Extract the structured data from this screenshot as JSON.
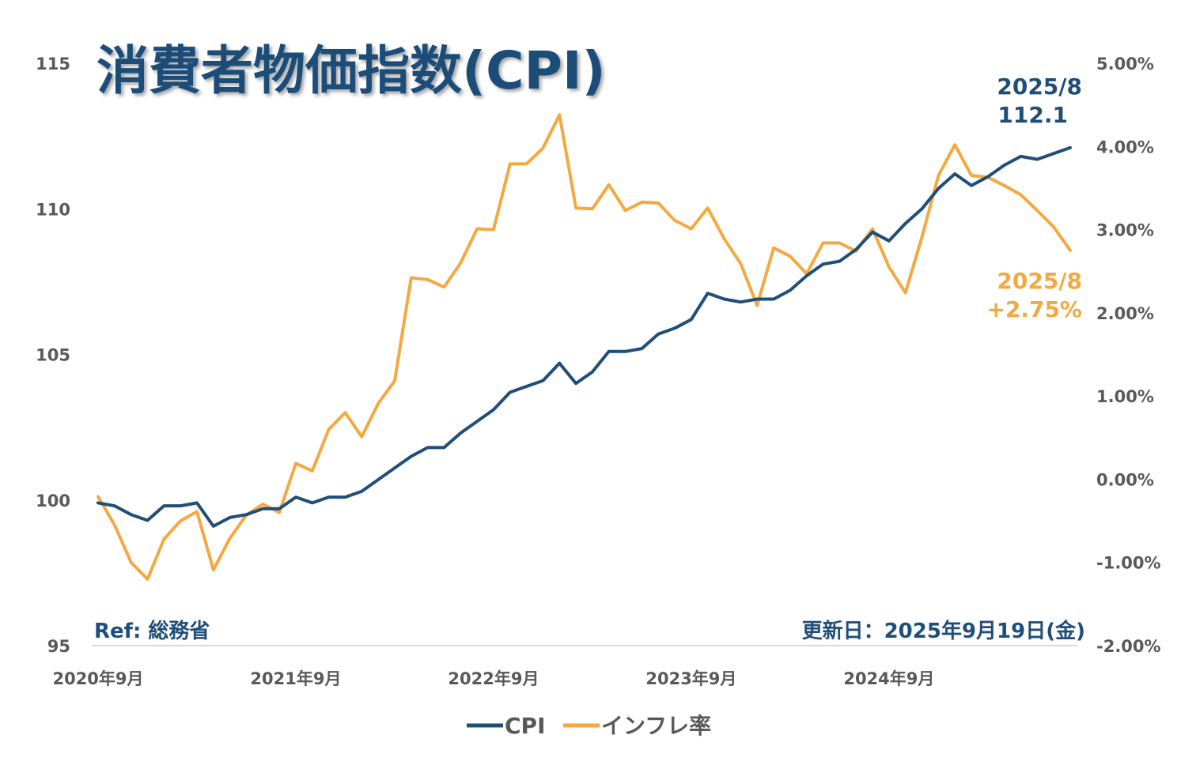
{
  "chart_data": {
    "type": "line",
    "title": "消費者物価指数(CPI)",
    "x_start": "2020年9月",
    "x_tick_labels": [
      "2020年9月",
      "2021年9月",
      "2022年9月",
      "2023年9月",
      "2024年9月"
    ],
    "y_left": {
      "ylim": [
        95,
        115
      ],
      "ticks": [
        "95",
        "100",
        "105",
        "110",
        "115"
      ]
    },
    "y_right": {
      "ylim": [
        -2,
        5
      ],
      "ticks": [
        "-2.00%",
        "-1.00%",
        "0.00%",
        "1.00%",
        "2.00%",
        "3.00%",
        "4.00%",
        "5.00%"
      ]
    },
    "grid": false,
    "legend_placement": "bottom",
    "series": [
      {
        "name": "CPI",
        "axis": "left",
        "color": "#1f4e79",
        "values": [
          99.9,
          99.8,
          99.5,
          99.3,
          99.8,
          99.8,
          99.9,
          99.1,
          99.4,
          99.5,
          99.7,
          99.7,
          100.1,
          99.9,
          100.1,
          100.1,
          100.3,
          100.7,
          101.1,
          101.5,
          101.8,
          101.8,
          102.3,
          102.7,
          103.1,
          103.7,
          103.9,
          104.1,
          104.7,
          104.0,
          104.4,
          105.1,
          105.1,
          105.2,
          105.7,
          105.9,
          106.2,
          107.1,
          106.9,
          106.8,
          106.9,
          106.9,
          107.2,
          107.7,
          108.1,
          108.2,
          108.6,
          109.2,
          108.9,
          109.5,
          110.0,
          110.7,
          111.2,
          110.8,
          111.1,
          111.5,
          111.8,
          111.7,
          111.9,
          112.1
        ]
      },
      {
        "name": "インフレ率",
        "axis": "right",
        "color": "#f4a940",
        "values": [
          -0.21,
          -0.55,
          -1.0,
          -1.2,
          -0.72,
          -0.5,
          -0.39,
          -1.09,
          -0.71,
          -0.43,
          -0.3,
          -0.4,
          0.19,
          0.1,
          0.6,
          0.8,
          0.51,
          0.91,
          1.18,
          2.42,
          2.4,
          2.31,
          2.6,
          3.01,
          3.0,
          3.79,
          3.79,
          3.98,
          4.38,
          3.26,
          3.25,
          3.54,
          3.23,
          3.33,
          3.32,
          3.11,
          3.01,
          3.26,
          2.89,
          2.59,
          2.09,
          2.78,
          2.68,
          2.47,
          2.84,
          2.84,
          2.74,
          3.01,
          2.55,
          2.24,
          2.91,
          3.65,
          4.02,
          3.65,
          3.63,
          3.53,
          3.42,
          3.23,
          3.03,
          2.75
        ]
      }
    ],
    "annotations": {
      "cpi_date": "2025/8",
      "cpi_value": "112.1",
      "infl_date": "2025/8",
      "infl_value": "+2.75%"
    },
    "source": "Ref: 総務省",
    "updated": "更新日：2025年9月19日(金)"
  }
}
